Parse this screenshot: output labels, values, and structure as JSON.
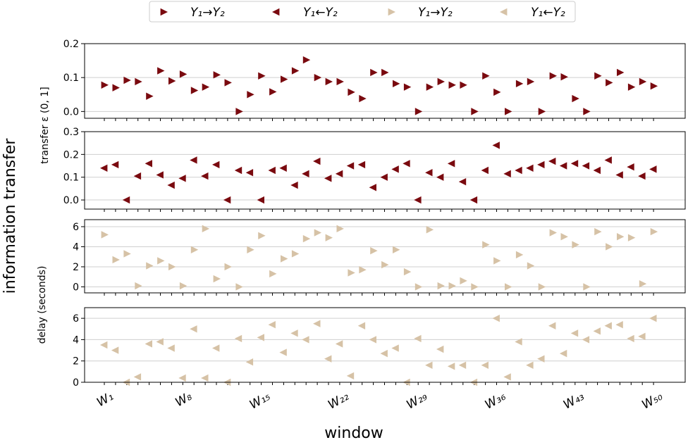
{
  "figure": {
    "super_ylabel": "information transfer",
    "xlabel": "window"
  },
  "legend": [
    {
      "label": "Y₁→Y₂",
      "color": "#7a0a0f",
      "marker": "triangle-right"
    },
    {
      "label": "Y₁←Y₂",
      "color": "#7a0a0f",
      "marker": "triangle-left"
    },
    {
      "label": "Y₁→Y₂",
      "color": "#d6c2a6",
      "marker": "triangle-right"
    },
    {
      "label": "Y₁←Y₂",
      "color": "#d6c2a6",
      "marker": "triangle-left"
    }
  ],
  "colors": {
    "dark": "#7a0a0f",
    "light": "#d6c2a6",
    "grid": "#cfcfcf"
  },
  "x_ticks": [
    {
      "label": "W₁",
      "window": 1
    },
    {
      "label": "W₈",
      "window": 8
    },
    {
      "label": "W₁₅",
      "window": 15
    },
    {
      "label": "W₂₂",
      "window": 22
    },
    {
      "label": "W₂₉",
      "window": 29
    },
    {
      "label": "W₃₆",
      "window": 36
    },
    {
      "label": "W₄₃",
      "window": 43
    },
    {
      "label": "W₅₀",
      "window": 50
    }
  ],
  "chart_data": [
    {
      "type": "scatter",
      "panel": "transfer-forward",
      "ylabel": "transfer ε (0, 1]",
      "ylim": [
        -0.02,
        0.2
      ],
      "yticks": [
        0.0,
        0.1,
        0.2
      ],
      "ytick_labels": [
        "0.0",
        "0.1",
        "0.2"
      ],
      "marker": "triangle-right",
      "color": "dark",
      "x": [
        1,
        2,
        3,
        4,
        5,
        6,
        7,
        8,
        9,
        10,
        11,
        12,
        13,
        14,
        15,
        16,
        17,
        18,
        19,
        20,
        21,
        22,
        23,
        24,
        25,
        26,
        27,
        28,
        29,
        30,
        31,
        32,
        33,
        34,
        35,
        36,
        37,
        38,
        39,
        40,
        41,
        42,
        43,
        44,
        45,
        46,
        47,
        48,
        49,
        50
      ],
      "values": [
        0.078,
        0.07,
        0.092,
        0.088,
        0.045,
        0.12,
        0.09,
        0.11,
        0.062,
        0.072,
        0.108,
        0.085,
        0.0,
        0.05,
        0.105,
        0.058,
        0.095,
        0.12,
        0.152,
        0.1,
        0.088,
        0.088,
        0.057,
        0.038,
        0.115,
        0.115,
        0.082,
        0.072,
        0.0,
        0.072,
        0.088,
        0.078,
        0.078,
        0.0,
        0.105,
        0.057,
        0.0,
        0.082,
        0.088,
        0.0,
        0.105,
        0.102,
        0.038,
        0.0,
        0.105,
        0.085,
        0.115,
        0.072,
        0.088,
        0.075
      ]
    },
    {
      "type": "scatter",
      "panel": "transfer-backward",
      "ylabel": "",
      "ylim": [
        -0.04,
        0.3
      ],
      "yticks": [
        0.0,
        0.1,
        0.2,
        0.3
      ],
      "ytick_labels": [
        "0.0",
        "0.1",
        "0.2",
        "0.3"
      ],
      "marker": "triangle-left",
      "color": "dark",
      "x": [
        1,
        2,
        3,
        4,
        5,
        6,
        7,
        8,
        9,
        10,
        11,
        12,
        13,
        14,
        15,
        16,
        17,
        18,
        19,
        20,
        21,
        22,
        23,
        24,
        25,
        26,
        27,
        28,
        29,
        30,
        31,
        32,
        33,
        34,
        35,
        36,
        37,
        38,
        39,
        40,
        41,
        42,
        43,
        44,
        45,
        46,
        47,
        48,
        49,
        50
      ],
      "values": [
        0.14,
        0.155,
        0.0,
        0.105,
        0.16,
        0.11,
        0.065,
        0.095,
        0.175,
        0.105,
        0.155,
        0.0,
        0.13,
        0.12,
        0.0,
        0.13,
        0.14,
        0.065,
        0.115,
        0.17,
        0.095,
        0.115,
        0.15,
        0.155,
        0.055,
        0.1,
        0.135,
        0.16,
        0.0,
        0.12,
        0.1,
        0.16,
        0.08,
        0.0,
        0.13,
        0.24,
        0.115,
        0.13,
        0.14,
        0.155,
        0.17,
        0.15,
        0.16,
        0.15,
        0.13,
        0.175,
        0.11,
        0.145,
        0.105,
        0.135
      ]
    },
    {
      "type": "scatter",
      "panel": "delay-forward",
      "ylabel": "delay (seconds)",
      "ylim": [
        -0.6,
        6.7
      ],
      "yticks": [
        0,
        2,
        4,
        6
      ],
      "ytick_labels": [
        "0",
        "2",
        "4",
        "6"
      ],
      "marker": "triangle-right",
      "color": "light",
      "x": [
        1,
        2,
        3,
        4,
        5,
        6,
        7,
        8,
        9,
        10,
        11,
        12,
        13,
        14,
        15,
        16,
        17,
        18,
        19,
        20,
        21,
        22,
        23,
        24,
        25,
        26,
        27,
        28,
        29,
        30,
        31,
        32,
        33,
        34,
        35,
        36,
        37,
        38,
        39,
        40,
        41,
        42,
        43,
        44,
        45,
        46,
        47,
        48,
        49,
        50
      ],
      "values": [
        5.2,
        2.7,
        3.3,
        0.1,
        2.1,
        2.6,
        2.0,
        0.1,
        3.7,
        5.8,
        0.8,
        2.0,
        0.0,
        3.7,
        5.1,
        1.3,
        2.8,
        3.3,
        4.8,
        5.4,
        4.9,
        5.8,
        1.4,
        1.7,
        3.6,
        2.2,
        3.7,
        1.5,
        0.0,
        5.7,
        0.1,
        0.1,
        0.6,
        0.0,
        4.2,
        2.6,
        0.0,
        3.2,
        2.1,
        0.0,
        5.4,
        5.0,
        4.2,
        0.0,
        5.5,
        4.0,
        5.0,
        4.9,
        0.3,
        5.5
      ]
    },
    {
      "type": "scatter",
      "panel": "delay-backward",
      "ylabel": "",
      "ylim": [
        0,
        7.0
      ],
      "yticks": [
        0,
        2,
        4,
        6
      ],
      "ytick_labels": [
        "0",
        "2",
        "4",
        "6"
      ],
      "marker": "triangle-left",
      "color": "light",
      "x": [
        1,
        2,
        3,
        4,
        5,
        6,
        7,
        8,
        9,
        10,
        11,
        12,
        13,
        14,
        15,
        16,
        17,
        18,
        19,
        20,
        21,
        22,
        23,
        24,
        25,
        26,
        27,
        28,
        29,
        30,
        31,
        32,
        33,
        34,
        35,
        36,
        37,
        38,
        39,
        40,
        41,
        42,
        43,
        44,
        45,
        46,
        47,
        48,
        49,
        50
      ],
      "values": [
        3.5,
        3.0,
        0.0,
        0.5,
        3.6,
        3.8,
        3.2,
        0.4,
        5.0,
        0.4,
        3.2,
        0.0,
        4.1,
        1.9,
        4.2,
        5.4,
        2.8,
        4.6,
        4.0,
        5.5,
        2.2,
        3.6,
        0.6,
        5.3,
        4.0,
        2.7,
        3.2,
        0.0,
        4.1,
        1.6,
        3.1,
        1.5,
        1.6,
        0.0,
        1.6,
        6.0,
        0.5,
        3.8,
        1.6,
        2.2,
        5.3,
        2.7,
        4.6,
        4.0,
        4.8,
        5.3,
        5.4,
        4.1,
        4.3,
        6.0
      ]
    }
  ]
}
